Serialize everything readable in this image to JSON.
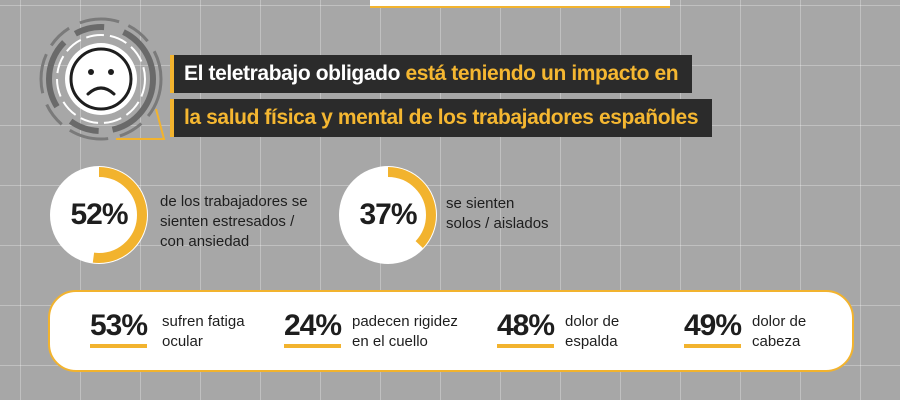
{
  "title": {
    "line1_white": "El teletrabajo obligado",
    "line1_yellow": "está teniendo un impacto en",
    "line2_yellow": "la salud física y mental de los trabajadores españoles"
  },
  "emblem": {
    "icon": "sad-face-icon"
  },
  "highlights": [
    {
      "value": "52%",
      "fraction": 0.52,
      "label_lines": [
        "de los trabajadores se",
        "sienten estresados /",
        "con ansiedad"
      ]
    },
    {
      "value": "37%",
      "fraction": 0.37,
      "label_lines": [
        "se sienten",
        "solos / aislados"
      ]
    }
  ],
  "stats": [
    {
      "value": "53%",
      "label_lines": [
        "sufren fatiga",
        "ocular"
      ]
    },
    {
      "value": "24%",
      "label_lines": [
        "padecen rigidez",
        "en el cuello"
      ]
    },
    {
      "value": "48%",
      "label_lines": [
        "dolor de",
        "espalda"
      ]
    },
    {
      "value": "49%",
      "label_lines": [
        "dolor de",
        "cabeza"
      ]
    }
  ],
  "colors": {
    "accent": "#f2b32e",
    "dark": "#2b2b2b",
    "background": "#a7a7a7",
    "ring_track": "#ffffff"
  }
}
